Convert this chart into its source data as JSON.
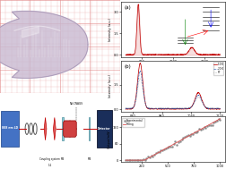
{
  "crystal_bg": "#f5e8e8",
  "crystal_fill": "#c8b8d0",
  "crystal_edge": "#a090b0",
  "grid_color_h": "#e08080",
  "grid_color_v": "#e08080",
  "schematic_bg": "#ffffff",
  "ld_color": "#4472c4",
  "ld_edge": "#2f5496",
  "lens_fill": "#e06060",
  "lens_edge": "#c00000",
  "mirror_fill": "#90d0d8",
  "mirror_edge": "#5090a0",
  "crystal_s_fill": "#d04040",
  "crystal_s_edge": "#900000",
  "detector_fill": "#1a2e5a",
  "detector_edge": "#101830",
  "beam_color": "#c00000",
  "panel_label_size": 4,
  "tick_size": 2.5,
  "xlabel_size": 2.5,
  "ylabel_size": 2.5,
  "legend_size": 2.0
}
